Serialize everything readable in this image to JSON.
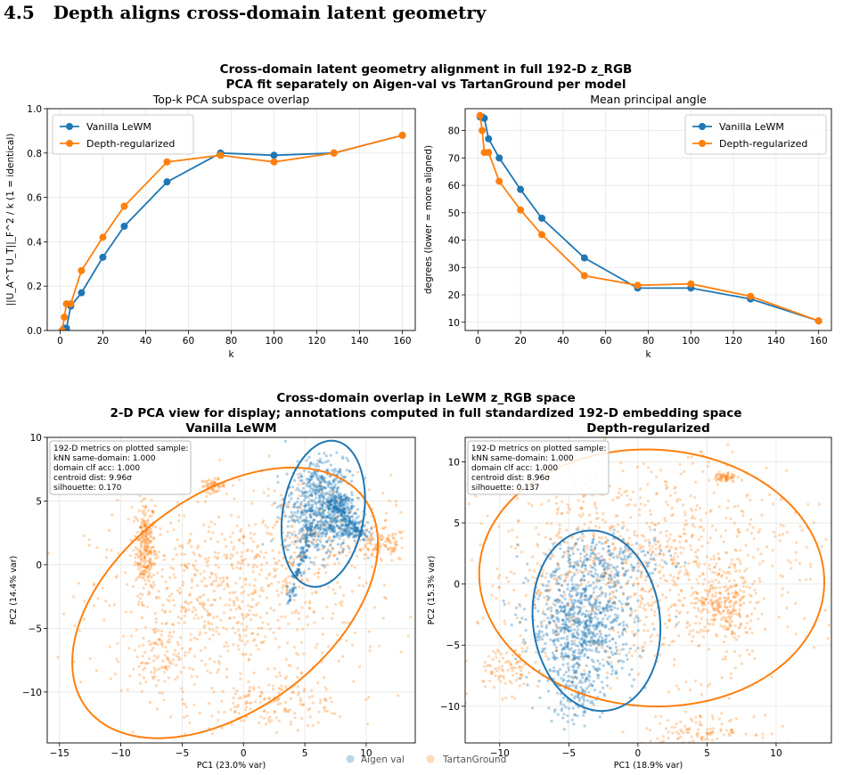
{
  "heading": {
    "number": "4.5",
    "title": "Depth aligns cross-domain latent geometry"
  },
  "colors": {
    "vanilla": "#1f77b4",
    "depth": "#ff7f0e",
    "grid": "#e6e6e6"
  },
  "top_figure": {
    "suptitle_line1": "Cross-domain latent geometry alignment in full 192-D z_RGB",
    "suptitle_line2": "PCA fit separately on Aigen-val vs TartanGround per model"
  },
  "bottom_figure": {
    "suptitle_line1": "Cross-domain overlap in LeWM z_RGB space",
    "suptitle_line2": "2-D PCA view for display; annotations computed in full standardized 192-D embedding space",
    "bottom_legend": [
      "Aigen val",
      "TartanGround"
    ]
  },
  "chart_data": [
    {
      "type": "line",
      "title": "Top-k PCA subspace overlap",
      "xlabel": "k",
      "ylabel": "||U_A^T U_T||_F^2 / k (1 = identical)",
      "xlim": [
        -6,
        166
      ],
      "ylim": [
        0,
        1.0
      ],
      "xticks": [
        0,
        20,
        40,
        60,
        80,
        100,
        120,
        140,
        160
      ],
      "yticks": [
        0.0,
        0.2,
        0.4,
        0.6,
        0.8,
        1.0
      ],
      "ytick_labels": [
        "0.0",
        "0.2",
        "0.4",
        "0.6",
        "0.8",
        "1.0"
      ],
      "grid": true,
      "legend": "top-left",
      "series": [
        {
          "name": "Vanilla LeWM",
          "x": [
            1,
            2,
            3,
            5,
            10,
            20,
            30,
            50,
            75,
            100,
            128,
            160
          ],
          "y": [
            0.0,
            0.01,
            0.01,
            0.11,
            0.17,
            0.33,
            0.47,
            0.67,
            0.8,
            0.79,
            0.8,
            0.88
          ]
        },
        {
          "name": "Depth-regularized",
          "x": [
            1,
            2,
            3,
            5,
            10,
            20,
            30,
            50,
            75,
            100,
            128,
            160
          ],
          "y": [
            0.0,
            0.06,
            0.12,
            0.12,
            0.27,
            0.42,
            0.56,
            0.76,
            0.79,
            0.76,
            0.8,
            0.88
          ]
        }
      ]
    },
    {
      "type": "line",
      "title": "Mean principal angle",
      "xlabel": "k",
      "ylabel": "degrees (lower = more aligned)",
      "xlim": [
        -6,
        166
      ],
      "ylim": [
        7,
        88
      ],
      "xticks": [
        0,
        20,
        40,
        60,
        80,
        100,
        120,
        140,
        160
      ],
      "yticks": [
        10,
        20,
        30,
        40,
        50,
        60,
        70,
        80
      ],
      "ytick_labels": [
        "10",
        "20",
        "30",
        "40",
        "50",
        "60",
        "70",
        "80"
      ],
      "grid": true,
      "legend": "top-right",
      "series": [
        {
          "name": "Vanilla LeWM",
          "x": [
            1,
            2,
            3,
            5,
            10,
            20,
            30,
            50,
            75,
            100,
            128,
            160
          ],
          "y": [
            85,
            85,
            84.5,
            77,
            70,
            58.5,
            48,
            33.5,
            22.5,
            22.5,
            18.5,
            10.5
          ]
        },
        {
          "name": "Depth-regularized",
          "x": [
            1,
            2,
            3,
            5,
            10,
            20,
            30,
            50,
            75,
            100,
            128,
            160
          ],
          "y": [
            85.5,
            80,
            72,
            72,
            61.5,
            51,
            42,
            27,
            23.5,
            24,
            19.5,
            10.5
          ]
        }
      ]
    },
    {
      "type": "scatter",
      "title": "Vanilla LeWM",
      "xlabel": "PC1 (23.0% var)",
      "ylabel": "PC2 (14.4% var)",
      "xlim": [
        -16,
        14
      ],
      "ylim": [
        -14,
        10
      ],
      "xticks": [
        -15,
        -10,
        -5,
        0,
        5,
        10
      ],
      "xtick_labels": [
        "−15",
        "−10",
        "−5",
        "0",
        "5",
        "10"
      ],
      "yticks": [
        -10,
        -5,
        0,
        5,
        10
      ],
      "ytick_labels": [
        "−10",
        "−5",
        "0",
        "5",
        "10"
      ],
      "grid": true,
      "annotation": [
        "192-D metrics on plotted sample:",
        "kNN same-domain: 1.000",
        "domain clf acc: 1.000",
        "centroid dist: 9.96σ",
        "silhouette: 0.170"
      ],
      "ellipses": [
        {
          "series": "TartanGround",
          "cx": -1.5,
          "cy": -3.0,
          "rx": 14.0,
          "ry": 8.5,
          "angle": 35
        },
        {
          "series": "Aigen val",
          "cx": 6.5,
          "cy": 4.0,
          "rx": 3.3,
          "ry": 5.8,
          "angle": -10
        }
      ],
      "series": [
        {
          "name": "Aigen val",
          "clusters": [
            {
              "cx": 6.2,
              "cy": 4.0,
              "sx": 1.4,
              "sy": 1.6,
              "n": 550
            },
            {
              "cx": 7.8,
              "cy": 4.8,
              "sx": 0.6,
              "sy": 0.6,
              "n": 120
            },
            {
              "cx": 8.5,
              "cy": 2.8,
              "sx": 0.8,
              "sy": 0.5,
              "n": 120
            },
            {
              "cx": 6.8,
              "cy": 7.0,
              "sx": 1.2,
              "sy": 0.8,
              "n": 130
            }
          ],
          "trails": [
            {
              "x1": 5.5,
              "y1": 3.0,
              "x2": 3.7,
              "y2": -3.0,
              "n": 90
            },
            {
              "x1": 7.0,
              "y1": 5.0,
              "x2": 10.0,
              "y2": 2.0,
              "n": 70
            }
          ]
        },
        {
          "name": "TartanGround",
          "clusters": [
            {
              "cx": -8.0,
              "cy": 1.5,
              "sx": 0.4,
              "sy": 1.8,
              "n": 260
            },
            {
              "cx": -2.5,
              "cy": 6.2,
              "sx": 0.5,
              "sy": 0.25,
              "n": 60
            },
            {
              "cx": 11.0,
              "cy": 1.5,
              "sx": 1.2,
              "sy": 0.7,
              "n": 110
            },
            {
              "cx": 2.5,
              "cy": -11.0,
              "sx": 3.2,
              "sy": 0.9,
              "n": 160
            },
            {
              "cx": -1.5,
              "cy": -3.0,
              "sx": 5.5,
              "sy": 3.6,
              "n": 650
            },
            {
              "cx": -6.5,
              "cy": -7.5,
              "sx": 1.5,
              "sy": 1.8,
              "n": 110
            },
            {
              "cx": 4.0,
              "cy": 2.0,
              "sx": 4.0,
              "sy": 2.5,
              "n": 250
            }
          ],
          "trails": []
        }
      ]
    },
    {
      "type": "scatter",
      "title": "Depth-regularized",
      "xlabel": "PC1 (18.9% var)",
      "ylabel": "PC2 (15.3% var)",
      "xlim": [
        -12.5,
        14
      ],
      "ylim": [
        -13,
        12
      ],
      "xticks": [
        -10,
        -5,
        0,
        5,
        10
      ],
      "xtick_labels": [
        "−10",
        "−5",
        "0",
        "5",
        "10"
      ],
      "yticks": [
        -10,
        -5,
        0,
        5,
        10
      ],
      "ytick_labels": [
        "−10",
        "−5",
        "0",
        "5",
        "10"
      ],
      "grid": true,
      "annotation": [
        "192-D metrics on plotted sample:",
        "kNN same-domain: 1.000",
        "domain clf acc: 1.000",
        "centroid dist: 8.96σ",
        "silhouette: 0.137"
      ],
      "ellipses": [
        {
          "series": "TartanGround",
          "cx": 1.0,
          "cy": 0.5,
          "rx": 12.5,
          "ry": 10.5,
          "angle": -5
        },
        {
          "series": "Aigen val",
          "cx": -3.0,
          "cy": -3.0,
          "rx": 4.6,
          "ry": 7.4,
          "angle": 5
        }
      ],
      "series": [
        {
          "name": "Aigen val",
          "clusters": [
            {
              "cx": -4.0,
              "cy": -3.5,
              "sx": 1.9,
              "sy": 2.4,
              "n": 800
            },
            {
              "cx": -2.0,
              "cy": 2.0,
              "sx": 2.2,
              "sy": 1.0,
              "n": 200
            },
            {
              "cx": -4.5,
              "cy": -9.0,
              "sx": 1.0,
              "sy": 1.2,
              "n": 120
            }
          ],
          "trails": []
        },
        {
          "name": "TartanGround",
          "clusters": [
            {
              "cx": 6.3,
              "cy": 8.7,
              "sx": 0.4,
              "sy": 0.25,
              "n": 60
            },
            {
              "cx": 6.0,
              "cy": -2.0,
              "sx": 1.2,
              "sy": 1.3,
              "n": 220
            },
            {
              "cx": 4.5,
              "cy": -12.0,
              "sx": 2.0,
              "sy": 0.6,
              "n": 110
            },
            {
              "cx": -9.5,
              "cy": -7.0,
              "sx": 1.2,
              "sy": 1.0,
              "n": 90
            },
            {
              "cx": 0.5,
              "cy": 1.5,
              "sx": 5.8,
              "sy": 4.2,
              "n": 1000
            }
          ],
          "trails": []
        }
      ]
    }
  ]
}
